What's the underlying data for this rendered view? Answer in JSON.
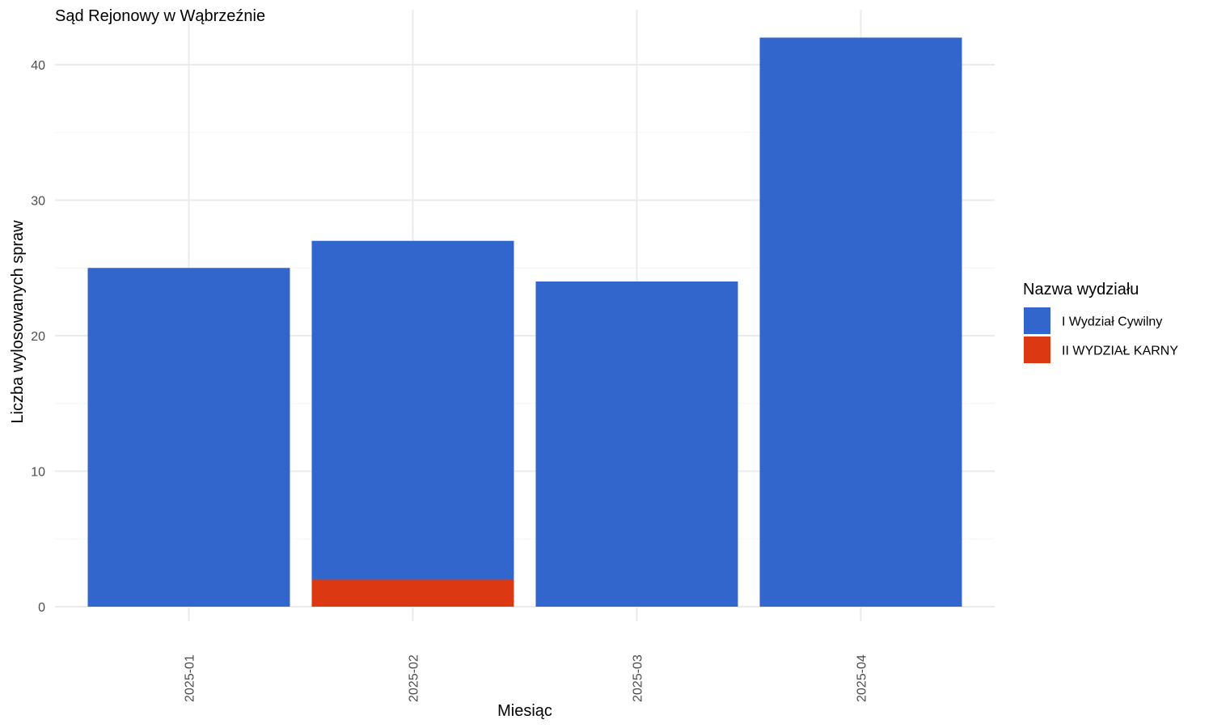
{
  "chart_data": {
    "type": "bar",
    "stacked": true,
    "title": "Sąd Rejonowy w Wąbrzeźnie",
    "xlabel": "Miesiąc",
    "ylabel": "Liczba wylosowanych spraw",
    "categories": [
      "2025-01",
      "2025-02",
      "2025-03",
      "2025-04"
    ],
    "ylim": [
      0,
      42
    ],
    "yticks": [
      0,
      10,
      20,
      30,
      40
    ],
    "grid": true,
    "series": [
      {
        "name": "I Wydział Cywilny",
        "values": [
          25,
          25,
          24,
          42
        ],
        "color": "#3366CC"
      },
      {
        "name": "II WYDZIAŁ KARNY",
        "values": [
          0,
          2,
          0,
          0
        ],
        "color": "#DC3912"
      }
    ],
    "legend": {
      "title": "Nazwa wydziału",
      "position": "right"
    }
  }
}
